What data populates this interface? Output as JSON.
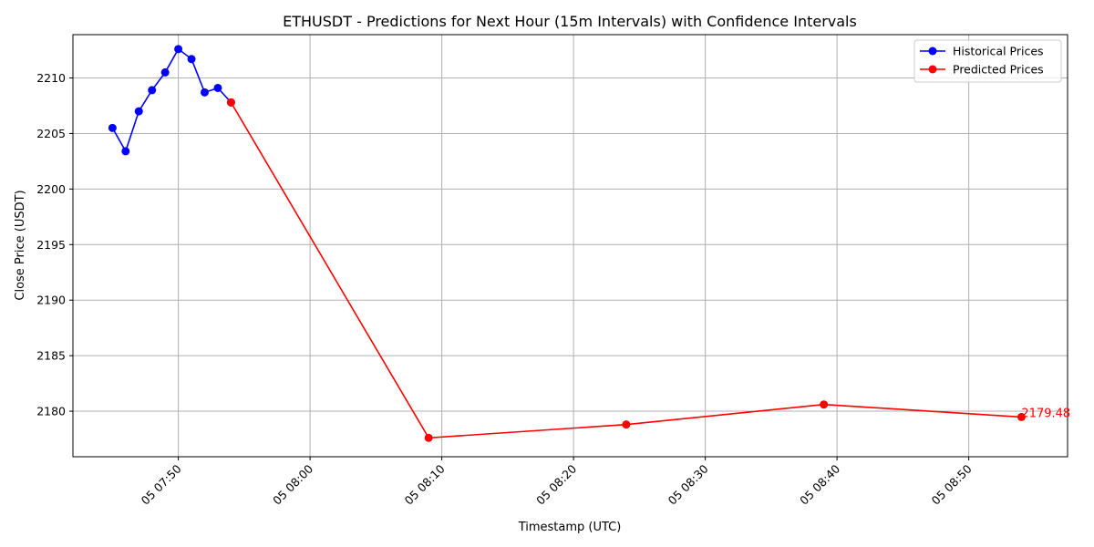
{
  "chart_data": {
    "type": "line",
    "title": "ETHUSDT - Predictions for Next Hour (15m Intervals) with Confidence Intervals",
    "xlabel": "Timestamp (UTC)",
    "ylabel": "Close Price (USDT)",
    "x_ticks": [
      "05 07:50",
      "05 08:00",
      "05 08:10",
      "05 08:20",
      "05 08:30",
      "05 08:40",
      "05 08:50"
    ],
    "x_tick_times": [
      "07:50",
      "08:00",
      "08:10",
      "08:20",
      "08:30",
      "08:40",
      "08:50"
    ],
    "y_ticks": [
      2180,
      2185,
      2190,
      2195,
      2200,
      2205,
      2210
    ],
    "xlim": [
      "07:42:00",
      "08:57:30"
    ],
    "ylim": [
      2175.9,
      2213.9
    ],
    "grid": true,
    "legend_position": "top-right",
    "series": [
      {
        "name": "Historical Prices",
        "color": "#0000ff",
        "points": [
          {
            "t": "07:45",
            "y": 2205.5
          },
          {
            "t": "07:46",
            "y": 2203.4
          },
          {
            "t": "07:47",
            "y": 2207.0
          },
          {
            "t": "07:48",
            "y": 2208.9
          },
          {
            "t": "07:49",
            "y": 2210.5
          },
          {
            "t": "07:50",
            "y": 2212.6
          },
          {
            "t": "07:51",
            "y": 2211.7
          },
          {
            "t": "07:52",
            "y": 2208.7
          },
          {
            "t": "07:53",
            "y": 2209.1
          },
          {
            "t": "07:54",
            "y": 2207.8
          }
        ]
      },
      {
        "name": "Predicted Prices",
        "color": "#ff0000",
        "points": [
          {
            "t": "07:54",
            "y": 2207.8
          },
          {
            "t": "08:09",
            "y": 2177.6
          },
          {
            "t": "08:24",
            "y": 2178.8
          },
          {
            "t": "08:39",
            "y": 2180.6
          },
          {
            "t": "08:54",
            "y": 2179.48
          }
        ]
      }
    ],
    "annotations": [
      {
        "text": "2179.48",
        "t": "08:54",
        "y": 2179.48,
        "color": "#ff0000"
      }
    ]
  }
}
